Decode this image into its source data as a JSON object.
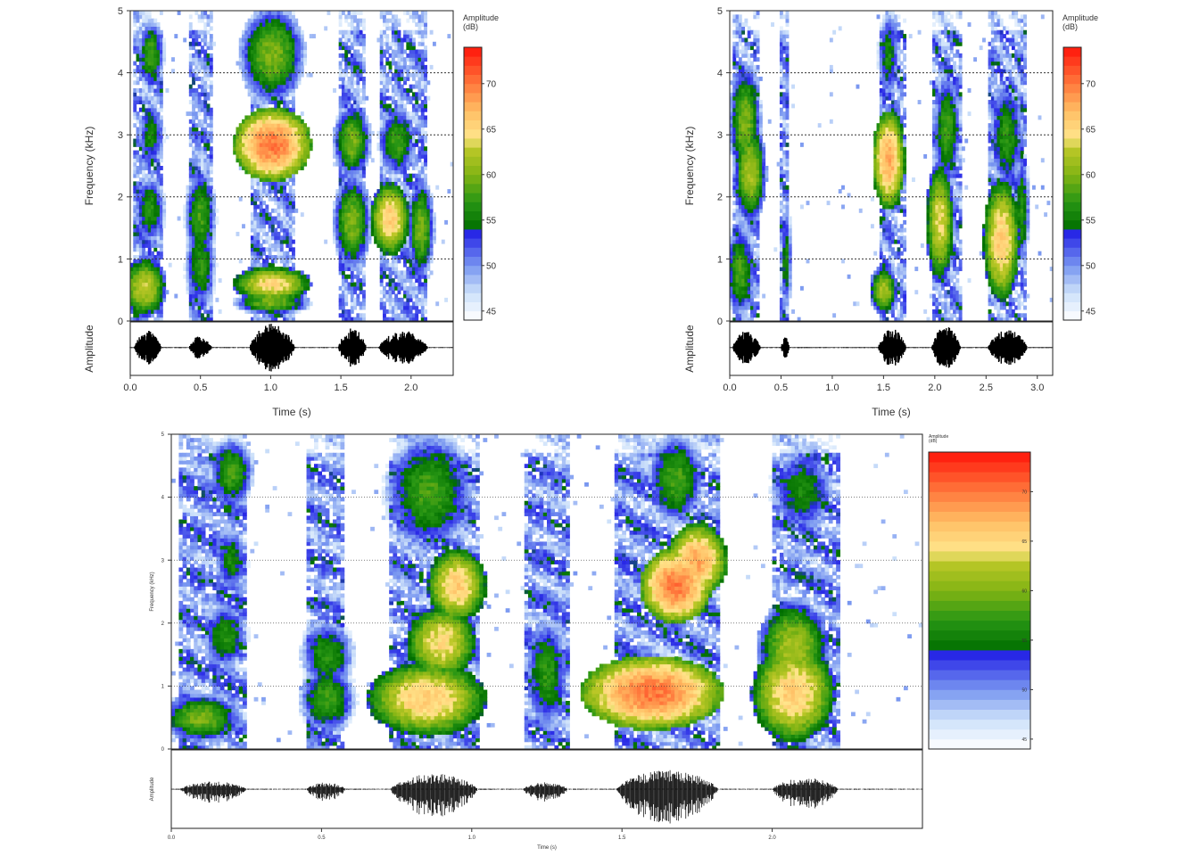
{
  "chart_data": [
    {
      "type": "heatmap",
      "title": "",
      "xlabel": "Time (s)",
      "ylabel": "Frequency (kHz)",
      "amp_label": "Amplitude",
      "colorbar_title": "Amplitude\n(dB)",
      "xlim": [
        0,
        2.3
      ],
      "ylim": [
        0,
        5
      ],
      "xticks": [
        "0.0",
        "0.5",
        "1.0",
        "1.5",
        "2.0"
      ],
      "xtick_values": [
        0,
        0.5,
        1.0,
        1.5,
        2.0
      ],
      "yticks": [
        "0",
        "1",
        "2",
        "3",
        "4",
        "5"
      ],
      "ytick_values": [
        0,
        1,
        2,
        3,
        4,
        5
      ],
      "colorbar_ticks": [
        "45",
        "50",
        "55",
        "60",
        "65",
        "70"
      ],
      "colorbar_values": [
        45,
        50,
        55,
        60,
        65,
        70
      ],
      "colorbar_range": [
        44,
        74
      ],
      "gridlines_khz": [
        1,
        2,
        3,
        4
      ],
      "segments": [
        [
          0.03,
          0.22
        ],
        [
          0.42,
          0.58
        ],
        [
          0.85,
          1.17
        ],
        [
          1.48,
          1.68
        ],
        [
          1.77,
          2.12
        ]
      ],
      "blobs": [
        {
          "t": 0.1,
          "f": 0.55,
          "dt": 0.08,
          "df": 0.25,
          "db": 63
        },
        {
          "t": 0.15,
          "f": 4.3,
          "dt": 0.05,
          "df": 0.3,
          "db": 58
        },
        {
          "t": 0.15,
          "f": 3.0,
          "dt": 0.05,
          "df": 0.3,
          "db": 56
        },
        {
          "t": 0.14,
          "f": 1.8,
          "dt": 0.06,
          "df": 0.3,
          "db": 57
        },
        {
          "t": 0.5,
          "f": 1.7,
          "dt": 0.06,
          "df": 0.4,
          "db": 58
        },
        {
          "t": 0.5,
          "f": 0.9,
          "dt": 0.06,
          "df": 0.4,
          "db": 57
        },
        {
          "t": 1.01,
          "f": 2.85,
          "dt": 0.14,
          "df": 0.3,
          "db": 70
        },
        {
          "t": 1.01,
          "f": 4.3,
          "dt": 0.12,
          "df": 0.4,
          "db": 60
        },
        {
          "t": 1.01,
          "f": 0.6,
          "dt": 0.14,
          "df": 0.15,
          "db": 65
        },
        {
          "t": 1.01,
          "f": 0.3,
          "dt": 0.14,
          "df": 0.1,
          "db": 60
        },
        {
          "t": 1.58,
          "f": 2.9,
          "dt": 0.07,
          "df": 0.3,
          "db": 60
        },
        {
          "t": 1.58,
          "f": 1.6,
          "dt": 0.07,
          "df": 0.4,
          "db": 60
        },
        {
          "t": 1.85,
          "f": 1.65,
          "dt": 0.07,
          "df": 0.3,
          "db": 66
        },
        {
          "t": 1.9,
          "f": 2.9,
          "dt": 0.07,
          "df": 0.3,
          "db": 58
        },
        {
          "t": 2.07,
          "f": 1.5,
          "dt": 0.05,
          "df": 0.4,
          "db": 60
        }
      ],
      "waveform": [
        [
          0.03,
          0.22,
          0.7
        ],
        [
          0.42,
          0.58,
          0.5
        ],
        [
          0.85,
          1.17,
          1.0
        ],
        [
          1.48,
          1.68,
          0.8
        ],
        [
          1.77,
          2.12,
          0.7
        ]
      ]
    },
    {
      "type": "heatmap",
      "title": "",
      "xlabel": "Time (s)",
      "ylabel": "Frequency (kHz)",
      "amp_label": "Amplitude",
      "colorbar_title": "Amplitude\n(dB)",
      "xlim": [
        0,
        3.15
      ],
      "ylim": [
        0,
        5
      ],
      "xticks": [
        "0.0",
        "0.5",
        "1.0",
        "1.5",
        "2.0",
        "2.5",
        "3.0"
      ],
      "xtick_values": [
        0,
        0.5,
        1.0,
        1.5,
        2.0,
        2.5,
        3.0
      ],
      "yticks": [
        "0",
        "1",
        "2",
        "3",
        "4",
        "5"
      ],
      "ytick_values": [
        0,
        1,
        2,
        3,
        4,
        5
      ],
      "colorbar_ticks": [
        "45",
        "50",
        "55",
        "60",
        "65",
        "70"
      ],
      "colorbar_values": [
        45,
        50,
        55,
        60,
        65,
        70
      ],
      "colorbar_range": [
        44,
        74
      ],
      "gridlines_khz": [
        1,
        2,
        3,
        4
      ],
      "segments": [
        [
          0.03,
          0.3
        ],
        [
          0.5,
          0.58
        ],
        [
          1.45,
          1.72
        ],
        [
          1.97,
          2.25
        ],
        [
          2.52,
          2.9
        ]
      ],
      "blobs": [
        {
          "t": 0.15,
          "f": 3.2,
          "dt": 0.08,
          "df": 0.5,
          "db": 60
        },
        {
          "t": 0.2,
          "f": 2.4,
          "dt": 0.08,
          "df": 0.4,
          "db": 62
        },
        {
          "t": 0.1,
          "f": 0.8,
          "dt": 0.08,
          "df": 0.4,
          "db": 58
        },
        {
          "t": 0.55,
          "f": 1.0,
          "dt": 0.03,
          "df": 0.5,
          "db": 56
        },
        {
          "t": 1.55,
          "f": 2.6,
          "dt": 0.08,
          "df": 0.4,
          "db": 68
        },
        {
          "t": 1.5,
          "f": 0.5,
          "dt": 0.07,
          "df": 0.2,
          "db": 62
        },
        {
          "t": 1.55,
          "f": 4.3,
          "dt": 0.06,
          "df": 0.4,
          "db": 56
        },
        {
          "t": 2.05,
          "f": 1.6,
          "dt": 0.07,
          "df": 0.5,
          "db": 64
        },
        {
          "t": 2.12,
          "f": 3.1,
          "dt": 0.07,
          "df": 0.5,
          "db": 58
        },
        {
          "t": 2.65,
          "f": 1.3,
          "dt": 0.09,
          "df": 0.5,
          "db": 66
        },
        {
          "t": 2.7,
          "f": 3.0,
          "dt": 0.09,
          "df": 0.5,
          "db": 57
        },
        {
          "t": 2.85,
          "f": 1.8,
          "dt": 0.04,
          "df": 0.5,
          "db": 57
        }
      ],
      "waveform": [
        [
          0.03,
          0.3,
          0.7
        ],
        [
          0.5,
          0.58,
          0.45
        ],
        [
          1.45,
          1.72,
          0.8
        ],
        [
          1.97,
          2.25,
          0.9
        ],
        [
          2.52,
          2.9,
          0.75
        ]
      ]
    },
    {
      "type": "heatmap",
      "title": "",
      "xlabel": "Time (s)",
      "ylabel": "Frequency (kHz)",
      "amp_label": "Amplitude",
      "colorbar_title": "Amplitude\n(dB)",
      "xlim": [
        0,
        2.5
      ],
      "ylim": [
        0,
        5
      ],
      "xticks": [
        "0.0",
        "0.5",
        "1.0",
        "1.5",
        "2.0"
      ],
      "xtick_values": [
        0,
        0.5,
        1.0,
        1.5,
        2.0
      ],
      "yticks": [
        "0",
        "1",
        "2",
        "3",
        "4",
        "5"
      ],
      "ytick_values": [
        0,
        1,
        2,
        3,
        4,
        5
      ],
      "colorbar_ticks": [
        "45",
        "50",
        "55",
        "60",
        "65",
        "70"
      ],
      "colorbar_values": [
        45,
        50,
        55,
        60,
        65,
        70
      ],
      "colorbar_range": [
        44,
        74
      ],
      "gridlines_khz": [
        1,
        2,
        3,
        4
      ],
      "segments": [
        [
          0.03,
          0.25
        ],
        [
          0.45,
          0.58
        ],
        [
          0.73,
          1.02
        ],
        [
          1.17,
          1.32
        ],
        [
          1.48,
          1.82
        ],
        [
          2.0,
          2.22
        ]
      ],
      "blobs": [
        {
          "t": 0.1,
          "f": 0.5,
          "dt": 0.07,
          "df": 0.2,
          "db": 60
        },
        {
          "t": 0.2,
          "f": 4.4,
          "dt": 0.04,
          "df": 0.3,
          "db": 58
        },
        {
          "t": 0.18,
          "f": 1.8,
          "dt": 0.04,
          "df": 0.3,
          "db": 57
        },
        {
          "t": 0.2,
          "f": 3.0,
          "dt": 0.03,
          "df": 0.3,
          "db": 56
        },
        {
          "t": 0.52,
          "f": 1.5,
          "dt": 0.05,
          "df": 0.3,
          "db": 57
        },
        {
          "t": 0.52,
          "f": 0.8,
          "dt": 0.05,
          "df": 0.3,
          "db": 58
        },
        {
          "t": 0.85,
          "f": 0.8,
          "dt": 0.1,
          "df": 0.3,
          "db": 66
        },
        {
          "t": 0.9,
          "f": 1.7,
          "dt": 0.06,
          "df": 0.3,
          "db": 65
        },
        {
          "t": 0.95,
          "f": 2.6,
          "dt": 0.05,
          "df": 0.3,
          "db": 66
        },
        {
          "t": 0.86,
          "f": 4.1,
          "dt": 0.08,
          "df": 0.5,
          "db": 58
        },
        {
          "t": 1.25,
          "f": 1.2,
          "dt": 0.04,
          "df": 0.5,
          "db": 57
        },
        {
          "t": 1.6,
          "f": 0.9,
          "dt": 0.12,
          "df": 0.3,
          "db": 70
        },
        {
          "t": 1.68,
          "f": 2.6,
          "dt": 0.06,
          "df": 0.3,
          "db": 70
        },
        {
          "t": 1.75,
          "f": 3.0,
          "dt": 0.05,
          "df": 0.3,
          "db": 68
        },
        {
          "t": 1.68,
          "f": 4.3,
          "dt": 0.05,
          "df": 0.4,
          "db": 58
        },
        {
          "t": 2.07,
          "f": 0.9,
          "dt": 0.07,
          "df": 0.4,
          "db": 66
        },
        {
          "t": 2.07,
          "f": 1.6,
          "dt": 0.06,
          "df": 0.4,
          "db": 62
        },
        {
          "t": 2.1,
          "f": 4.1,
          "dt": 0.06,
          "df": 0.4,
          "db": 56
        }
      ],
      "waveform": [
        [
          0.03,
          0.25,
          0.4
        ],
        [
          0.45,
          0.58,
          0.35
        ],
        [
          0.73,
          1.02,
          0.8
        ],
        [
          1.17,
          1.32,
          0.35
        ],
        [
          1.48,
          1.82,
          1.0
        ],
        [
          2.0,
          2.22,
          0.6
        ]
      ]
    }
  ]
}
